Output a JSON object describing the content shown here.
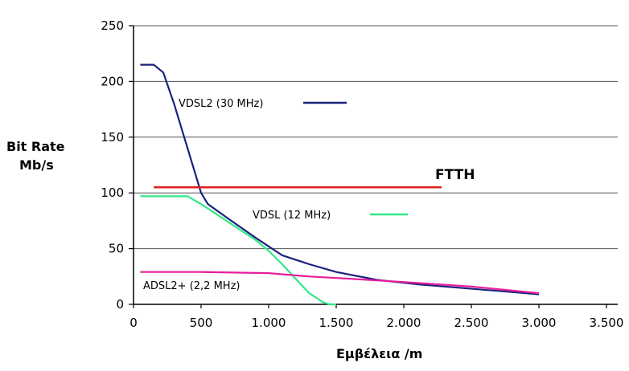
{
  "chart_data": {
    "type": "line",
    "title": "",
    "ylabel_line1": "Bit Rate",
    "ylabel_line2": "Mb/s",
    "xlabel": "Εμβέλεια /m",
    "xlim": [
      0,
      3500
    ],
    "ylim": [
      0,
      250
    ],
    "x_ticks": [
      0,
      500,
      1000,
      1500,
      2000,
      2500,
      3000,
      3500
    ],
    "x_tick_labels": [
      "0",
      "500",
      "1.000",
      "1.500",
      "2.000",
      "2.500",
      "3.000",
      "3.500"
    ],
    "y_ticks": [
      0,
      50,
      100,
      150,
      200,
      250
    ],
    "y_tick_labels": [
      "0",
      "50",
      "100",
      "150",
      "200",
      "250"
    ],
    "grid": true,
    "series": [
      {
        "name": "VDSL2 (30 MHz)",
        "color": "#1a237e",
        "x": [
          50,
          150,
          220,
          300,
          400,
          500,
          550,
          700,
          900,
          1100,
          1300,
          1500,
          1800,
          2100,
          2400,
          2700,
          3000
        ],
        "y": [
          215,
          215,
          208,
          180,
          140,
          100,
          90,
          77,
          60,
          44,
          36,
          29,
          22,
          18,
          15,
          12,
          9
        ]
      },
      {
        "name": "VDSL (12 MHz)",
        "color": "#33e887",
        "x": [
          50,
          200,
          400,
          500,
          700,
          900,
          1000,
          1100,
          1200,
          1300,
          1400,
          1450,
          1500
        ],
        "y": [
          97,
          97,
          97,
          90,
          74,
          58,
          48,
          36,
          23,
          10,
          2,
          0,
          0
        ]
      },
      {
        "name": "ADSL2+ (2,2 MHz)",
        "color": "#e81e9b",
        "x": [
          50,
          500,
          1000,
          1300,
          1600,
          2000,
          2500,
          3000
        ],
        "y": [
          29,
          29,
          28,
          25,
          23,
          20,
          16,
          10
        ]
      },
      {
        "name": "FTTH",
        "color": "#e02020",
        "x": [
          150,
          2280
        ],
        "y": [
          105,
          105
        ]
      }
    ]
  }
}
